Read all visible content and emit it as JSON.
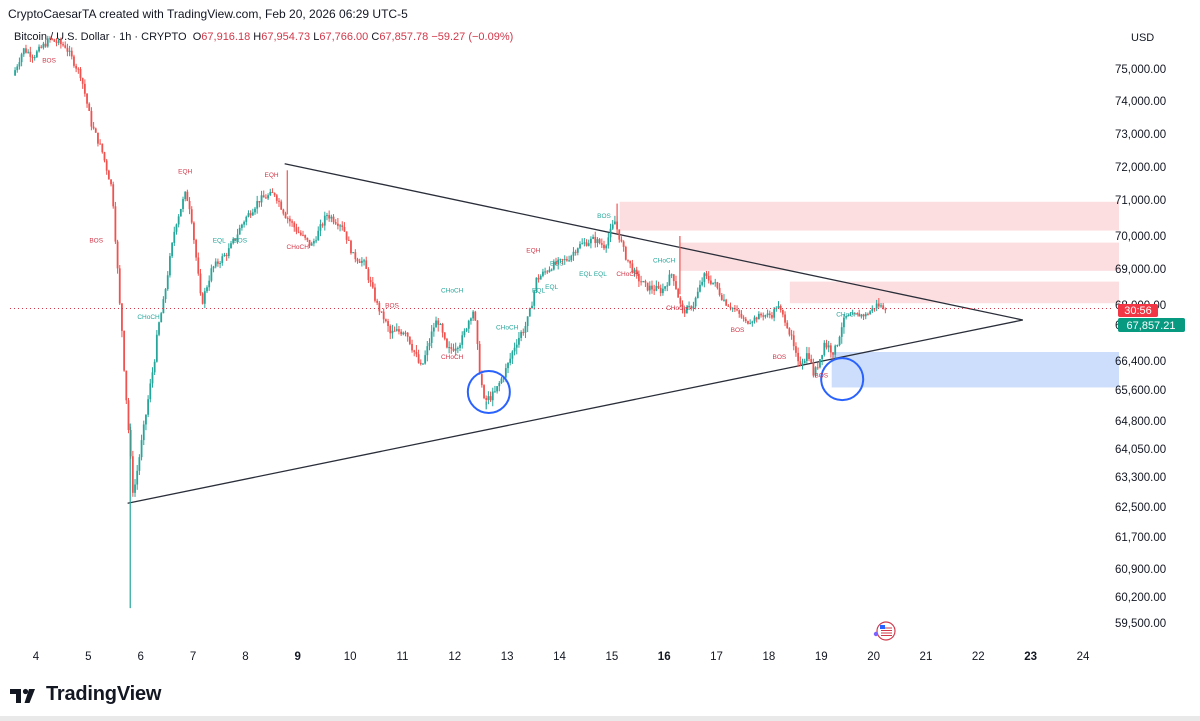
{
  "header": {
    "created_by": "CryptoCaesarTA created with TradingView.com, Feb 20, 2026 06:29 UTC-5",
    "symbol": "Bitcoin / U.S. Dollar · 1h · CRYPTO",
    "open_label": "O",
    "open": "67,916.18",
    "high_label": "H",
    "high": "67,954.73",
    "low_label": "L",
    "low": "67,766.00",
    "close_label": "C",
    "close": "67,857.78",
    "change": "−59.27 (−0.09%)"
  },
  "price_axis": {
    "currency": "USD",
    "ticks": [
      "75,000.00",
      "74,000.00",
      "73,000.00",
      "72,000.00",
      "71,000.00",
      "70,000.00",
      "69,000.00",
      "68,000.00",
      "67,200.00",
      "66,400.00",
      "65,600.00",
      "64,800.00",
      "64,050.00",
      "63,300.00",
      "62,500.00",
      "61,700.00",
      "60,900.00",
      "60,200.00",
      "59,500.00"
    ],
    "countdown_badge": "30:56",
    "last_price_badge": "67,857.21"
  },
  "time_axis": {
    "labels": [
      {
        "text": "4",
        "bold": false
      },
      {
        "text": "5",
        "bold": false
      },
      {
        "text": "6",
        "bold": false
      },
      {
        "text": "7",
        "bold": false
      },
      {
        "text": "8",
        "bold": false
      },
      {
        "text": "9",
        "bold": true
      },
      {
        "text": "10",
        "bold": false
      },
      {
        "text": "11",
        "bold": false
      },
      {
        "text": "12",
        "bold": false
      },
      {
        "text": "13",
        "bold": false
      },
      {
        "text": "14",
        "bold": false
      },
      {
        "text": "15",
        "bold": false
      },
      {
        "text": "16",
        "bold": true
      },
      {
        "text": "17",
        "bold": false
      },
      {
        "text": "18",
        "bold": false
      },
      {
        "text": "19",
        "bold": false
      },
      {
        "text": "20",
        "bold": false
      },
      {
        "text": "21",
        "bold": false
      },
      {
        "text": "22",
        "bold": false
      },
      {
        "text": "23",
        "bold": true
      },
      {
        "text": "24",
        "bold": false
      }
    ]
  },
  "colors": {
    "up": "#26a69a",
    "down": "#ef5350",
    "annotation_red": "#d1384a",
    "annotation_green": "#26a69a",
    "resistance_zone": "#fbd3d5",
    "support_zone": "#c9dcfb",
    "circle": "#2962ff",
    "trendline": "#2a2e39",
    "badge_red": "#f23645",
    "badge_green": "#089981"
  },
  "brand": {
    "name": "TradingView",
    "logo_icon": "tradingview-logo-icon"
  },
  "chart_data": {
    "type": "candlestick",
    "title": "Bitcoin / U.S. Dollar · 1h · CRYPTO",
    "ylabel": "USD",
    "ylim": [
      59100,
      76200
    ],
    "x_range_days": [
      3.5,
      24.9
    ],
    "price_anchors": [
      [
        3.6,
        74800
      ],
      [
        3.8,
        75600
      ],
      [
        4.0,
        75400
      ],
      [
        4.3,
        75900
      ],
      [
        4.6,
        75700
      ],
      [
        4.9,
        74800
      ],
      [
        5.1,
        73300
      ],
      [
        5.3,
        72500
      ],
      [
        5.5,
        71300
      ],
      [
        5.65,
        67800
      ],
      [
        5.75,
        65700
      ],
      [
        5.9,
        62800
      ],
      [
        6.1,
        64600
      ],
      [
        6.3,
        66400
      ],
      [
        6.5,
        68300
      ],
      [
        6.7,
        70300
      ],
      [
        6.9,
        71200
      ],
      [
        7.0,
        70700
      ],
      [
        7.2,
        68000
      ],
      [
        7.4,
        69000
      ],
      [
        7.7,
        69500
      ],
      [
        8.0,
        70400
      ],
      [
        8.3,
        71000
      ],
      [
        8.6,
        71200
      ],
      [
        8.8,
        70600
      ],
      [
        9.0,
        70200
      ],
      [
        9.3,
        69700
      ],
      [
        9.6,
        70600
      ],
      [
        9.9,
        70300
      ],
      [
        10.1,
        69400
      ],
      [
        10.3,
        69200
      ],
      [
        10.6,
        67800
      ],
      [
        10.8,
        67000
      ],
      [
        11.1,
        67100
      ],
      [
        11.4,
        66200
      ],
      [
        11.7,
        67400
      ],
      [
        11.9,
        66600
      ],
      [
        12.2,
        66900
      ],
      [
        12.4,
        67800
      ],
      [
        12.5,
        66300
      ],
      [
        12.6,
        65300
      ],
      [
        12.8,
        65500
      ],
      [
        13.0,
        66100
      ],
      [
        13.2,
        66800
      ],
      [
        13.4,
        67200
      ],
      [
        13.6,
        68700
      ],
      [
        13.9,
        69100
      ],
      [
        14.2,
        69300
      ],
      [
        14.4,
        69700
      ],
      [
        14.7,
        69900
      ],
      [
        14.9,
        69700
      ],
      [
        15.1,
        70400
      ],
      [
        15.3,
        69400
      ],
      [
        15.5,
        68800
      ],
      [
        15.7,
        68500
      ],
      [
        16.0,
        68400
      ],
      [
        16.2,
        68900
      ],
      [
        16.4,
        67700
      ],
      [
        16.6,
        68000
      ],
      [
        16.8,
        68800
      ],
      [
        17.0,
        68600
      ],
      [
        17.2,
        68100
      ],
      [
        17.4,
        67800
      ],
      [
        17.6,
        67300
      ],
      [
        17.9,
        67600
      ],
      [
        18.1,
        67600
      ],
      [
        18.2,
        68000
      ],
      [
        18.4,
        67200
      ],
      [
        18.6,
        66300
      ],
      [
        18.8,
        66600
      ],
      [
        18.9,
        66000
      ],
      [
        19.1,
        66800
      ],
      [
        19.3,
        66600
      ],
      [
        19.5,
        67500
      ],
      [
        19.7,
        67600
      ],
      [
        19.9,
        67600
      ],
      [
        20.1,
        68000
      ],
      [
        20.25,
        67900
      ]
    ],
    "wick_extremes": [
      {
        "day": 5.8,
        "low": 59900
      },
      {
        "day": 12.6,
        "low": 65100
      },
      {
        "day": 15.1,
        "high": 70900
      },
      {
        "day": 8.8,
        "high": 71900
      },
      {
        "day": 16.3,
        "high": 70000
      }
    ],
    "trendlines": [
      {
        "name": "upper",
        "from": [
          8.75,
          72100
        ],
        "to": [
          22.85,
          67400
        ]
      },
      {
        "name": "lower",
        "from": [
          5.75,
          62600
        ],
        "to": [
          22.85,
          67400
        ]
      }
    ],
    "zones": [
      {
        "kind": "resistance",
        "x_from": 15.15,
        "x_to": 24.75,
        "y_from": 70950,
        "y_to": 70150
      },
      {
        "kind": "resistance",
        "x_from": 16.3,
        "x_to": 24.75,
        "y_from": 69800,
        "y_to": 68950
      },
      {
        "kind": "resistance",
        "x_from": 18.4,
        "x_to": 24.75,
        "y_from": 68650,
        "y_to": 68050
      },
      {
        "kind": "support",
        "x_from": 19.2,
        "x_to": 24.75,
        "y_from": 66600,
        "y_to": 65670
      }
    ],
    "circles": [
      {
        "day": 12.65,
        "price": 65550
      },
      {
        "day": 19.4,
        "price": 65900
      }
    ],
    "annotations": [
      {
        "text": "BOS",
        "color": "red",
        "day": 4.25,
        "price": 75200
      },
      {
        "text": "BOS",
        "color": "red",
        "day": 5.15,
        "price": 69800
      },
      {
        "text": "CHoCH",
        "color": "green",
        "day": 6.15,
        "price": 67450
      },
      {
        "text": "EQH",
        "color": "red",
        "day": 6.85,
        "price": 71800
      },
      {
        "text": "EQH",
        "color": "red",
        "day": 8.5,
        "price": 71700
      },
      {
        "text": "EQL",
        "color": "green",
        "day": 7.5,
        "price": 69800
      },
      {
        "text": "BOS",
        "color": "green",
        "day": 7.9,
        "price": 69800
      },
      {
        "text": "CHoCH",
        "color": "red",
        "day": 9.0,
        "price": 69600
      },
      {
        "text": "BOS",
        "color": "red",
        "day": 10.8,
        "price": 67900
      },
      {
        "text": "CHoCH",
        "color": "green",
        "day": 11.95,
        "price": 68350
      },
      {
        "text": "CHoCH",
        "color": "red",
        "day": 11.95,
        "price": 66450
      },
      {
        "text": "CHoCH",
        "color": "green",
        "day": 13.0,
        "price": 67100
      },
      {
        "text": "EQH",
        "color": "red",
        "day": 13.5,
        "price": 69500
      },
      {
        "text": "BOS",
        "color": "green",
        "day": 13.95,
        "price": 69100
      },
      {
        "text": "EQL",
        "color": "green",
        "day": 13.6,
        "price": 68350
      },
      {
        "text": "EQL",
        "color": "green",
        "day": 13.85,
        "price": 68450
      },
      {
        "text": "EQL",
        "color": "green",
        "day": 14.5,
        "price": 68800
      },
      {
        "text": "EQL",
        "color": "green",
        "day": 14.78,
        "price": 68800
      },
      {
        "text": "BOS",
        "color": "green",
        "day": 14.85,
        "price": 70500
      },
      {
        "text": "CHoCH",
        "color": "red",
        "day": 15.3,
        "price": 68800
      },
      {
        "text": "CHoCH",
        "color": "green",
        "day": 16.0,
        "price": 69200
      },
      {
        "text": "CHoCH",
        "color": "red",
        "day": 16.25,
        "price": 67800
      },
      {
        "text": "BOS",
        "color": "red",
        "day": 17.4,
        "price": 67050
      },
      {
        "text": "BOS",
        "color": "red",
        "day": 18.2,
        "price": 66450
      },
      {
        "text": "CHoCH",
        "color": "green",
        "day": 19.5,
        "price": 67550
      },
      {
        "text": "BOS",
        "color": "red",
        "day": 19.0,
        "price": 65950
      }
    ]
  }
}
